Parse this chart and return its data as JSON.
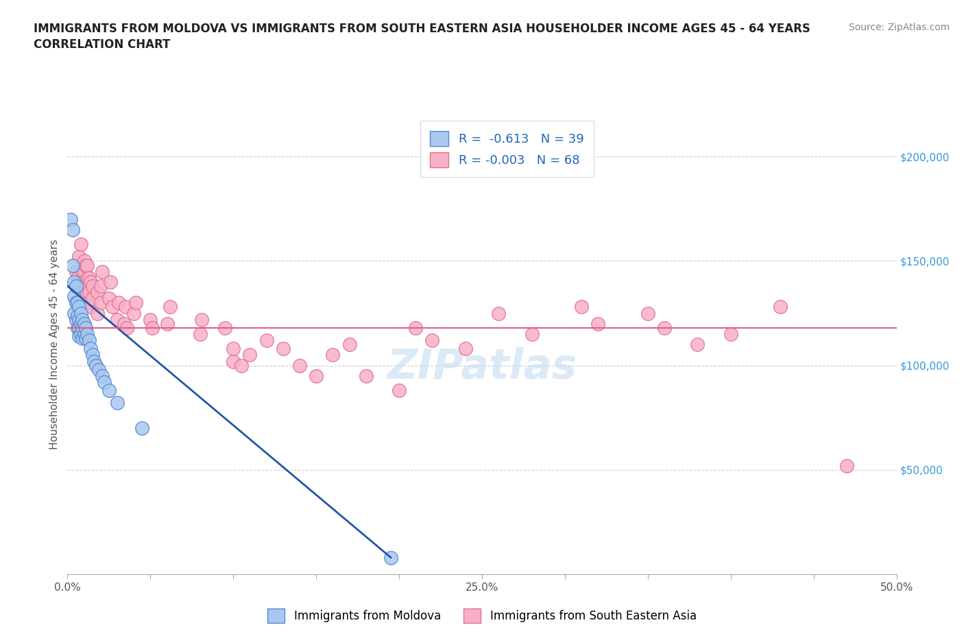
{
  "title_line1": "IMMIGRANTS FROM MOLDOVA VS IMMIGRANTS FROM SOUTH EASTERN ASIA HOUSEHOLDER INCOME AGES 45 - 64 YEARS",
  "title_line2": "CORRELATION CHART",
  "source_text": "Source: ZipAtlas.com",
  "ylabel": "Householder Income Ages 45 - 64 years",
  "xlim": [
    0.0,
    0.5
  ],
  "ylim": [
    0,
    220000
  ],
  "moldova_color": "#a8c8f0",
  "moldova_edge": "#5588cc",
  "sea_color": "#f8b0c8",
  "sea_edge": "#e07090",
  "trend_moldova_color": "#2255aa",
  "trend_sea_color": "#e06080",
  "legend_R_moldova": "R =  -0.613",
  "legend_N_moldova": "N = 39",
  "legend_R_sea": "R = -0.003",
  "legend_N_sea": "N = 68",
  "legend_label_moldova": "Immigrants from Moldova",
  "legend_label_sea": "Immigrants from South Eastern Asia",
  "watermark": "ZIPatlas",
  "dashed_grid_color": "#cccccc",
  "moldova_x": [
    0.002,
    0.003,
    0.003,
    0.004,
    0.004,
    0.004,
    0.005,
    0.005,
    0.005,
    0.006,
    0.006,
    0.006,
    0.007,
    0.007,
    0.007,
    0.007,
    0.008,
    0.008,
    0.008,
    0.009,
    0.009,
    0.009,
    0.01,
    0.01,
    0.011,
    0.011,
    0.012,
    0.013,
    0.014,
    0.015,
    0.016,
    0.017,
    0.019,
    0.021,
    0.022,
    0.025,
    0.03,
    0.045,
    0.195
  ],
  "moldova_y": [
    170000,
    165000,
    148000,
    140000,
    133000,
    125000,
    138000,
    130000,
    122000,
    130000,
    124000,
    118000,
    128000,
    122000,
    118000,
    114000,
    125000,
    120000,
    115000,
    122000,
    118000,
    113000,
    120000,
    115000,
    118000,
    113000,
    115000,
    112000,
    108000,
    105000,
    102000,
    100000,
    98000,
    95000,
    92000,
    88000,
    82000,
    70000,
    8000
  ],
  "sea_x": [
    0.005,
    0.006,
    0.007,
    0.007,
    0.008,
    0.008,
    0.009,
    0.01,
    0.01,
    0.01,
    0.011,
    0.011,
    0.012,
    0.012,
    0.012,
    0.013,
    0.013,
    0.014,
    0.014,
    0.015,
    0.015,
    0.018,
    0.018,
    0.02,
    0.02,
    0.021,
    0.025,
    0.026,
    0.027,
    0.03,
    0.031,
    0.034,
    0.035,
    0.036,
    0.04,
    0.041,
    0.05,
    0.051,
    0.06,
    0.062,
    0.08,
    0.081,
    0.095,
    0.1,
    0.1,
    0.105,
    0.11,
    0.12,
    0.13,
    0.14,
    0.15,
    0.16,
    0.17,
    0.18,
    0.2,
    0.21,
    0.22,
    0.24,
    0.26,
    0.28,
    0.31,
    0.32,
    0.35,
    0.36,
    0.38,
    0.4,
    0.43,
    0.47
  ],
  "sea_y": [
    145000,
    142000,
    138000,
    152000,
    135000,
    158000,
    145000,
    140000,
    150000,
    145000,
    138000,
    148000,
    130000,
    142000,
    148000,
    135000,
    142000,
    128000,
    140000,
    132000,
    138000,
    125000,
    135000,
    130000,
    138000,
    145000,
    132000,
    140000,
    128000,
    122000,
    130000,
    120000,
    128000,
    118000,
    125000,
    130000,
    122000,
    118000,
    120000,
    128000,
    115000,
    122000,
    118000,
    102000,
    108000,
    100000,
    105000,
    112000,
    108000,
    100000,
    95000,
    105000,
    110000,
    95000,
    88000,
    118000,
    112000,
    108000,
    125000,
    115000,
    128000,
    120000,
    125000,
    118000,
    110000,
    115000,
    128000,
    52000
  ],
  "trend_moldova_x0": 0.0,
  "trend_moldova_y0": 138000,
  "trend_moldova_x1": 0.195,
  "trend_moldova_y1": 8000,
  "trend_sea_y": 118000
}
